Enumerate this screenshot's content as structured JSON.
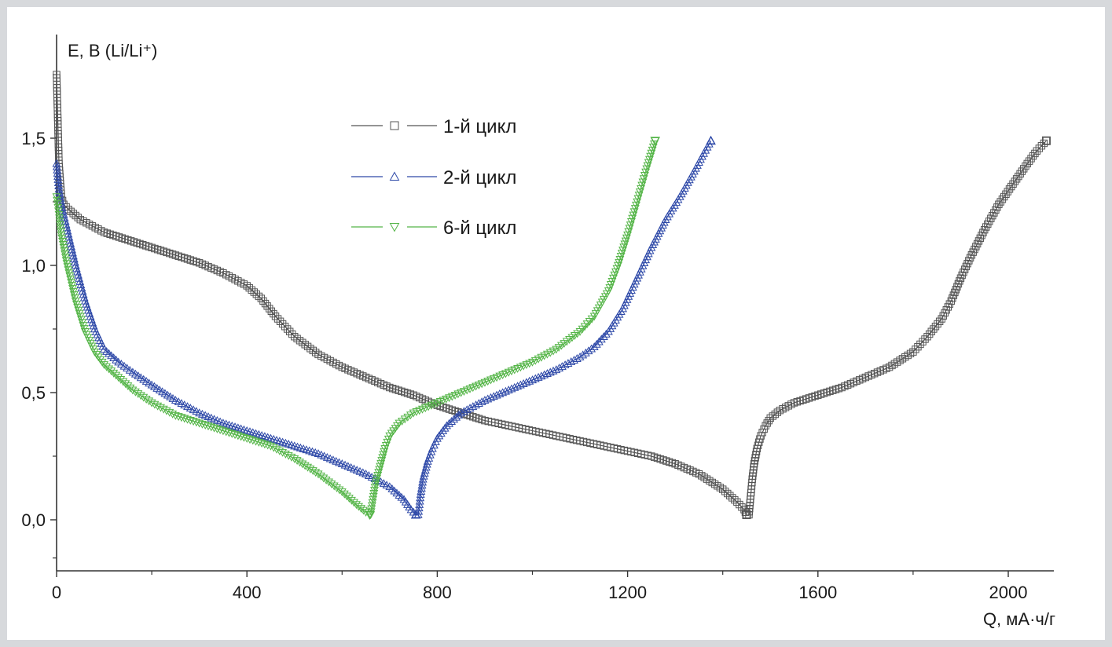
{
  "chart_data": {
    "type": "scatter",
    "ylabel": "E, B (Li/Li⁺)",
    "xlabel": "Q, мА·ч/г",
    "xlim": [
      0,
      2100
    ],
    "ylim": [
      -0.2,
      1.9
    ],
    "x_ticks": [
      "0",
      "400",
      "800",
      "1200",
      "1600",
      "2000"
    ],
    "y_ticks": [
      "0,0",
      "0,5",
      "1,0",
      "1,5"
    ],
    "x_tick_values": [
      0,
      400,
      800,
      1200,
      1600,
      2000
    ],
    "y_tick_values": [
      0,
      0.5,
      1.0,
      1.5
    ],
    "grid": false,
    "legend_position": "top-center",
    "series": [
      {
        "name": "1-й цикл",
        "color": "#555555",
        "marker": "square",
        "discharge": {
          "x": [
            0,
            5,
            10,
            15,
            25,
            50,
            100,
            150,
            200,
            250,
            300,
            350,
            400,
            430,
            460,
            500,
            550,
            600,
            650,
            700,
            750,
            800,
            850,
            900,
            950,
            1000,
            1050,
            1100,
            1150,
            1200,
            1250,
            1300,
            1350,
            1400,
            1430,
            1445,
            1450
          ],
          "y": [
            1.75,
            1.4,
            1.27,
            1.24,
            1.22,
            1.18,
            1.13,
            1.1,
            1.07,
            1.04,
            1.01,
            0.97,
            0.92,
            0.87,
            0.8,
            0.72,
            0.65,
            0.6,
            0.56,
            0.52,
            0.49,
            0.45,
            0.42,
            0.39,
            0.37,
            0.35,
            0.33,
            0.31,
            0.29,
            0.27,
            0.25,
            0.22,
            0.18,
            0.12,
            0.07,
            0.04,
            0.02
          ]
        },
        "charge": {
          "x": [
            1455,
            1458,
            1462,
            1466,
            1472,
            1480,
            1490,
            1500,
            1520,
            1550,
            1600,
            1650,
            1700,
            1750,
            1800,
            1830,
            1860,
            1880,
            1900,
            1920,
            1950,
            1980,
            2010,
            2040,
            2060,
            2080
          ],
          "y": [
            0.02,
            0.08,
            0.16,
            0.22,
            0.28,
            0.33,
            0.37,
            0.4,
            0.43,
            0.46,
            0.49,
            0.52,
            0.56,
            0.6,
            0.66,
            0.72,
            0.79,
            0.86,
            0.95,
            1.03,
            1.14,
            1.24,
            1.32,
            1.4,
            1.45,
            1.49
          ]
        }
      },
      {
        "name": "2-й цикл",
        "color": "#2e49a8",
        "marker": "triangle-up",
        "discharge": {
          "x": [
            0,
            5,
            10,
            20,
            40,
            60,
            80,
            100,
            130,
            160,
            200,
            250,
            300,
            350,
            400,
            450,
            500,
            550,
            600,
            650,
            700,
            730,
            745,
            755
          ],
          "y": [
            1.4,
            1.3,
            1.24,
            1.16,
            1.0,
            0.86,
            0.75,
            0.67,
            0.62,
            0.58,
            0.53,
            0.47,
            0.42,
            0.38,
            0.35,
            0.32,
            0.29,
            0.26,
            0.22,
            0.18,
            0.13,
            0.08,
            0.04,
            0.02
          ]
        },
        "charge": {
          "x": [
            760,
            765,
            770,
            780,
            790,
            800,
            820,
            850,
            900,
            950,
            1000,
            1050,
            1100,
            1130,
            1160,
            1190,
            1220,
            1250,
            1280,
            1310,
            1340,
            1360,
            1375
          ],
          "y": [
            0.02,
            0.1,
            0.16,
            0.23,
            0.28,
            0.32,
            0.37,
            0.42,
            0.47,
            0.51,
            0.55,
            0.59,
            0.64,
            0.68,
            0.74,
            0.83,
            0.95,
            1.07,
            1.18,
            1.27,
            1.37,
            1.44,
            1.49
          ]
        }
      },
      {
        "name": "6-й цикл",
        "color": "#55b548",
        "marker": "triangle-down",
        "discharge": {
          "x": [
            0,
            5,
            10,
            20,
            40,
            60,
            80,
            100,
            130,
            160,
            200,
            250,
            300,
            350,
            400,
            450,
            500,
            550,
            600,
            630,
            650,
            658
          ],
          "y": [
            1.27,
            1.2,
            1.12,
            1.02,
            0.86,
            0.74,
            0.66,
            0.61,
            0.56,
            0.51,
            0.46,
            0.41,
            0.38,
            0.35,
            0.32,
            0.29,
            0.24,
            0.18,
            0.11,
            0.06,
            0.03,
            0.02
          ]
        },
        "charge": {
          "x": [
            660,
            665,
            670,
            680,
            690,
            700,
            720,
            750,
            800,
            850,
            900,
            950,
            1000,
            1050,
            1100,
            1130,
            1160,
            1180,
            1200,
            1220,
            1240,
            1258
          ],
          "y": [
            0.02,
            0.08,
            0.14,
            0.21,
            0.28,
            0.33,
            0.38,
            0.42,
            0.46,
            0.5,
            0.54,
            0.58,
            0.62,
            0.67,
            0.74,
            0.8,
            0.9,
            1.0,
            1.12,
            1.25,
            1.38,
            1.49
          ]
        }
      }
    ]
  }
}
